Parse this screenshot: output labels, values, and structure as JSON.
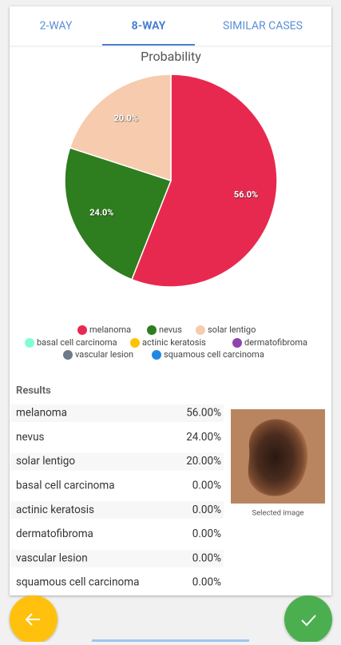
{
  "tabs": [
    "2-WAY",
    "8-WAY",
    "SIMILAR CASES"
  ],
  "chart_data": {
    "type": "pie",
    "title": "Probability",
    "categories": [
      "melanoma",
      "nevus",
      "solar lentigo",
      "basal cell carcinoma",
      "actinic keratosis",
      "dermatofibroma",
      "vascular lesion",
      "squamous cell carcinoma"
    ],
    "values": [
      56,
      24,
      20,
      0,
      0,
      0,
      0,
      0
    ],
    "value_labels": [
      "56.0%",
      "24.0%",
      "20.0%",
      null,
      null,
      null,
      null,
      null
    ],
    "colors": [
      "#e8294f",
      "#2e7d1e",
      "#f7cbad",
      "#80ffd4",
      "#ffc107",
      "#8e44ad",
      "#6c7a89",
      "#1e88e5"
    ],
    "legend": "bottom"
  },
  "results": {
    "title": "Results",
    "rows": [
      [
        "melanoma",
        "56.00%"
      ],
      [
        "nevus",
        "24.00%"
      ],
      [
        "solar lentigo",
        "20.00%"
      ],
      [
        "basal cell carcinoma",
        "0.00%"
      ],
      [
        "actinic keratosis",
        "0.00%"
      ],
      [
        "dermatofibroma",
        "0.00%"
      ],
      [
        "vascular lesion",
        "0.00%"
      ],
      [
        "squamous cell carcinoma",
        "0.00%"
      ]
    ]
  },
  "image_caption": "Selected image"
}
